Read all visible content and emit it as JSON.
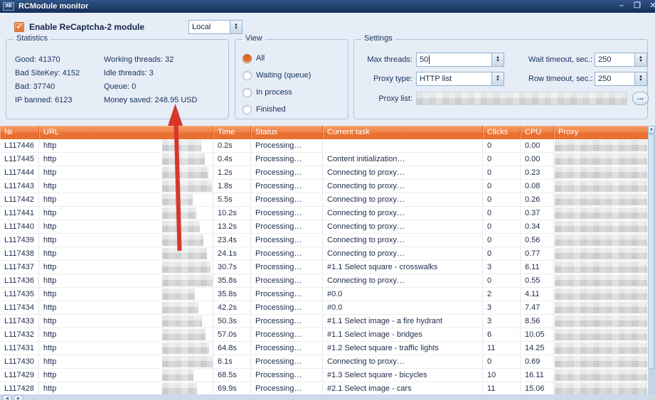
{
  "window": {
    "title": "RCModule monitor",
    "icon": "exe-icon",
    "controls": {
      "minimize": "–",
      "maximize": "❐",
      "close": "✕"
    }
  },
  "topbar": {
    "enable_label": "Enable ReCaptcha-2 module",
    "enabled": true,
    "mode_value": "Local"
  },
  "statistics": {
    "title": "Statistics",
    "col1": [
      "Good: 41370",
      "Bad SiteKey: 4152",
      "Bad: 37740",
      "IP banned: 6123"
    ],
    "col2": [
      "Working threads: 32",
      "Idle threads: 3",
      "Queue: 0",
      "Money saved: 248.95 USD"
    ]
  },
  "view": {
    "title": "View",
    "selected": "All",
    "options": [
      "All",
      "Waiting (queue)",
      "In process",
      "Finished"
    ]
  },
  "settings": {
    "title": "Settings",
    "max_threads": {
      "label": "Max threads:",
      "value": "50"
    },
    "proxy_type": {
      "label": "Proxy type:",
      "value": "HTTP list"
    },
    "proxy_list": {
      "label": "Proxy list:",
      "value_redacted": true,
      "browse_button": "..."
    },
    "wait_timeout": {
      "label": "Wait timeout, sec.:",
      "value": "250"
    },
    "row_timeout": {
      "label": "Row timeout, sec.:",
      "value": "250"
    }
  },
  "annotation": {
    "arrow_color": "#d7372b",
    "arrow_points_to": "Money saved: 248.95 USD"
  },
  "table": {
    "columns": [
      "№",
      "URL",
      "Time",
      "Status",
      "Current task",
      "Clicks",
      "CPU",
      "Proxy"
    ],
    "header_color": "#e8702f",
    "rows": [
      {
        "id": "L117446",
        "url": "http",
        "time": "0.2s",
        "status": "Processing…",
        "task": "",
        "clicks": "0",
        "cpu": "0.00"
      },
      {
        "id": "L117445",
        "url": "http",
        "time": "0.4s",
        "status": "Processing…",
        "task": "Content initialization…",
        "clicks": "0",
        "cpu": "0.00"
      },
      {
        "id": "L117444",
        "url": "http",
        "time": "1.2s",
        "status": "Processing…",
        "task": "Connecting to proxy…",
        "clicks": "0",
        "cpu": "0.23"
      },
      {
        "id": "L117443",
        "url": "http",
        "time": "1.8s",
        "status": "Processing…",
        "task": "Connecting to proxy…",
        "clicks": "0",
        "cpu": "0.08"
      },
      {
        "id": "L117442",
        "url": "http",
        "time": "5.5s",
        "status": "Processing…",
        "task": "Connecting to proxy…",
        "clicks": "0",
        "cpu": "0.26"
      },
      {
        "id": "L117441",
        "url": "http",
        "time": "10.2s",
        "status": "Processing…",
        "task": "Connecting to proxy…",
        "clicks": "0",
        "cpu": "0.37"
      },
      {
        "id": "L117440",
        "url": "http",
        "time": "13.2s",
        "status": "Processing…",
        "task": "Connecting to proxy…",
        "clicks": "0",
        "cpu": "0.34"
      },
      {
        "id": "L117439",
        "url": "http",
        "time": "23.4s",
        "status": "Processing…",
        "task": "Connecting to proxy…",
        "clicks": "0",
        "cpu": "0.56"
      },
      {
        "id": "L117438",
        "url": "http",
        "time": "24.1s",
        "status": "Processing…",
        "task": "Connecting to proxy…",
        "clicks": "0",
        "cpu": "0.77"
      },
      {
        "id": "L117437",
        "url": "http",
        "time": "30.7s",
        "status": "Processing…",
        "task": "#1.1 Select square - crosswalks",
        "clicks": "3",
        "cpu": "6.11"
      },
      {
        "id": "L117436",
        "url": "http",
        "time": "35.8s",
        "status": "Processing…",
        "task": "Connecting to proxy…",
        "clicks": "0",
        "cpu": "0.55"
      },
      {
        "id": "L117435",
        "url": "http",
        "time": "35.8s",
        "status": "Processing…",
        "task": "#0.0",
        "clicks": "2",
        "cpu": "4.11"
      },
      {
        "id": "L117434",
        "url": "http",
        "time": "42.2s",
        "status": "Processing…",
        "task": "#0.0",
        "clicks": "3",
        "cpu": "7.47"
      },
      {
        "id": "L117433",
        "url": "http",
        "time": "50.3s",
        "status": "Processing…",
        "task": "#1.1 Select image - a fire hydrant",
        "clicks": "3",
        "cpu": "8.56"
      },
      {
        "id": "L117432",
        "url": "http",
        "time": "57.0s",
        "status": "Processing…",
        "task": "#1.1 Select image - bridges",
        "clicks": "6",
        "cpu": "10.05"
      },
      {
        "id": "L117431",
        "url": "http",
        "time": "64.8s",
        "status": "Processing…",
        "task": "#1.2 Select square - traffic lights",
        "clicks": "11",
        "cpu": "14.25"
      },
      {
        "id": "L117430",
        "url": "http",
        "time": "6.1s",
        "status": "Processing…",
        "task": "Connecting to proxy…",
        "clicks": "0",
        "cpu": "0.69"
      },
      {
        "id": "L117429",
        "url": "http",
        "time": "68.5s",
        "status": "Processing…",
        "task": "#1.3 Select square - bicycles",
        "clicks": "10",
        "cpu": "16.11"
      },
      {
        "id": "L117428",
        "url": "http",
        "time": "69.9s",
        "status": "Processing…",
        "task": "#2.1 Select image - cars",
        "clicks": "11",
        "cpu": "15.06"
      }
    ]
  }
}
